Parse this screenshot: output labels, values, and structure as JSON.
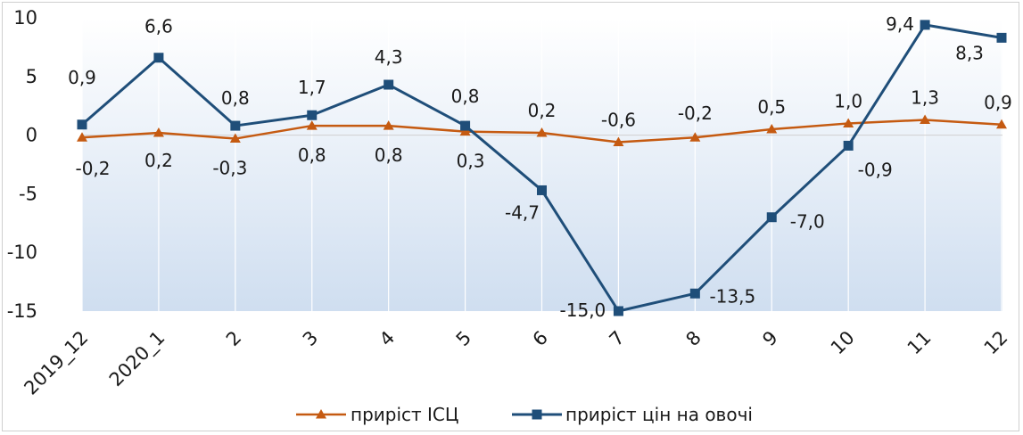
{
  "chart_data": {
    "type": "line",
    "categories": [
      "2019_12",
      "2020_1",
      "2",
      "3",
      "4",
      "5",
      "6",
      "7",
      "8",
      "9",
      "10",
      "11",
      "12"
    ],
    "series": [
      {
        "name": "приріст ІСЦ",
        "values": [
          -0.2,
          0.2,
          -0.3,
          0.8,
          0.8,
          0.3,
          0.2,
          -0.6,
          -0.2,
          0.5,
          1.0,
          1.3,
          0.9
        ],
        "labels": [
          "-0,2",
          "0,2",
          "-0,3",
          "0,8",
          "0,8",
          "0,3",
          "0,2",
          "-0,6",
          "-0,2",
          "0,5",
          "1,0",
          "1,3",
          "0,9"
        ],
        "color": "#C55A11",
        "marker": "triangle"
      },
      {
        "name": "приріст цін на овочі",
        "values": [
          0.9,
          6.6,
          0.8,
          1.7,
          4.3,
          0.8,
          -4.7,
          -15.0,
          -13.5,
          -7.0,
          -0.9,
          9.4,
          8.3
        ],
        "labels": [
          "0,9",
          "6,6",
          "0,8",
          "1,7",
          "4,3",
          "0,8",
          "-4,7",
          "-15,0",
          "-13,5",
          "-7,0",
          "-0,9",
          "9,4",
          "8,3"
        ],
        "color": "#1F4E79",
        "marker": "square"
      }
    ],
    "ylim": [
      -15,
      10
    ],
    "yticks": [
      10,
      5,
      0,
      -5,
      -10,
      -15
    ],
    "ytick_labels": [
      "10",
      "5",
      "0",
      "-5",
      "-10",
      "-15"
    ],
    "legend_position": "bottom",
    "grid": "vertical"
  }
}
